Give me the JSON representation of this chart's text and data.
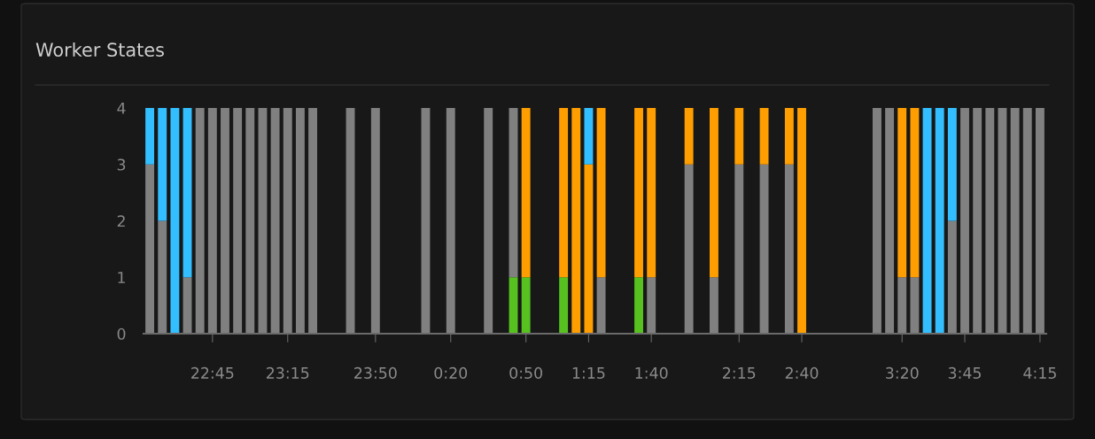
{
  "chart_data": {
    "type": "bar",
    "title": "Worker States",
    "stacked": true,
    "grid": false,
    "categories": [
      null,
      null,
      null,
      null,
      null,
      "22:45",
      null,
      null,
      null,
      null,
      null,
      "23:15",
      null,
      null,
      null,
      null,
      null,
      null,
      "23:50",
      null,
      null,
      null,
      null,
      null,
      "0:20",
      null,
      null,
      null,
      null,
      null,
      "0:50",
      null,
      null,
      null,
      null,
      "1:15",
      null,
      null,
      null,
      null,
      "1:40",
      null,
      null,
      null,
      null,
      null,
      null,
      "2:15",
      null,
      null,
      null,
      null,
      "2:40",
      null,
      null,
      null,
      null,
      null,
      null,
      null,
      "3:20",
      null,
      null,
      null,
      null,
      "3:45",
      null,
      null,
      null,
      null,
      null,
      "4:15"
    ],
    "ylim": [
      0,
      4
    ],
    "yticks": [
      0,
      1,
      2,
      3,
      4
    ],
    "series": [
      {
        "color": "#56c11f",
        "values": [
          null,
          null,
          null,
          null,
          null,
          null,
          null,
          null,
          null,
          null,
          null,
          null,
          null,
          null,
          null,
          null,
          null,
          null,
          null,
          null,
          null,
          null,
          null,
          null,
          null,
          null,
          null,
          null,
          null,
          1,
          1,
          null,
          null,
          1,
          null,
          null,
          null,
          null,
          null,
          1,
          null,
          null,
          null,
          null,
          null,
          null,
          null,
          null,
          null,
          null,
          null,
          null,
          null,
          null,
          null,
          null,
          null,
          null,
          null,
          null,
          null,
          null,
          null,
          null,
          null,
          null,
          null,
          null,
          null,
          null,
          null,
          null
        ]
      },
      {
        "color": "#808080",
        "values": [
          3,
          2,
          null,
          1,
          4,
          4,
          4,
          4,
          4,
          4,
          4,
          4,
          4,
          4,
          null,
          null,
          4,
          null,
          4,
          null,
          null,
          null,
          4,
          null,
          4,
          null,
          null,
          4,
          null,
          3,
          null,
          null,
          null,
          null,
          null,
          null,
          1,
          null,
          null,
          null,
          1,
          null,
          null,
          3,
          null,
          1,
          null,
          3,
          null,
          3,
          null,
          3,
          null,
          null,
          null,
          null,
          null,
          null,
          4,
          4,
          1,
          1,
          null,
          null,
          2,
          4,
          4,
          4,
          4,
          4,
          4,
          4
        ]
      },
      {
        "color": "#ff9e00",
        "values": [
          null,
          null,
          null,
          null,
          null,
          null,
          null,
          null,
          null,
          null,
          null,
          null,
          null,
          null,
          null,
          null,
          null,
          null,
          null,
          null,
          null,
          null,
          null,
          null,
          null,
          null,
          null,
          null,
          null,
          null,
          3,
          null,
          null,
          3,
          4,
          3,
          3,
          null,
          null,
          3,
          3,
          null,
          null,
          1,
          null,
          3,
          null,
          1,
          null,
          1,
          null,
          1,
          4,
          null,
          null,
          null,
          null,
          null,
          null,
          null,
          3,
          3,
          null,
          null,
          null,
          null,
          null,
          null,
          null,
          null,
          null,
          null
        ]
      },
      {
        "color": "#33bfff",
        "values": [
          1,
          2,
          4,
          3,
          null,
          null,
          null,
          null,
          null,
          null,
          null,
          null,
          null,
          null,
          null,
          null,
          null,
          null,
          null,
          null,
          null,
          null,
          null,
          null,
          null,
          null,
          null,
          null,
          null,
          null,
          null,
          null,
          null,
          null,
          null,
          1,
          null,
          null,
          null,
          null,
          null,
          null,
          null,
          null,
          null,
          null,
          null,
          null,
          null,
          null,
          null,
          null,
          null,
          null,
          null,
          null,
          null,
          null,
          null,
          null,
          null,
          null,
          4,
          4,
          2,
          null,
          null,
          null,
          null,
          null,
          null,
          null
        ]
      }
    ]
  }
}
